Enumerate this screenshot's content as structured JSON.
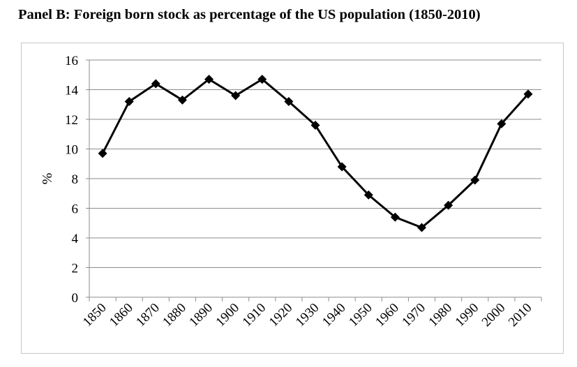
{
  "chart_data": {
    "type": "line",
    "title": "Panel B: Foreign born stock as percentage of the US population (1850-2010)",
    "xlabel": "",
    "ylabel": "%",
    "categories": [
      "1850",
      "1860",
      "1870",
      "1880",
      "1890",
      "1900",
      "1910",
      "1920",
      "1930",
      "1940",
      "1950",
      "1960",
      "1970",
      "1980",
      "1990",
      "2000",
      "2010"
    ],
    "y_ticks": [
      "0",
      "2",
      "4",
      "6",
      "8",
      "10",
      "12",
      "14",
      "16"
    ],
    "ylim": [
      0,
      16
    ],
    "grid": true,
    "legend": "none",
    "series": [
      {
        "values": [
          9.7,
          13.2,
          14.4,
          13.3,
          14.7,
          13.6,
          14.7,
          13.2,
          11.6,
          8.8,
          6.9,
          5.4,
          4.7,
          6.2,
          7.9,
          11.7,
          13.7
        ],
        "color": "#000000",
        "marker": "diamond"
      }
    ],
    "colors": {
      "line": "#000000",
      "grid": "#8c8c8c",
      "axis": "#8c8c8c",
      "frame": "#c8c8c8"
    }
  }
}
